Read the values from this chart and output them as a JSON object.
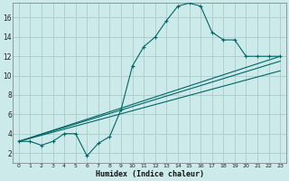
{
  "xlabel": "Humidex (Indice chaleur)",
  "bg_color": "#cceaea",
  "grid_color": "#aacccc",
  "line_color": "#006666",
  "xlim": [
    -0.5,
    23.5
  ],
  "ylim": [
    1.0,
    17.5
  ],
  "xticks": [
    0,
    1,
    2,
    3,
    4,
    5,
    6,
    7,
    8,
    9,
    10,
    11,
    12,
    13,
    14,
    15,
    16,
    17,
    18,
    19,
    20,
    21,
    22,
    23
  ],
  "yticks": [
    2,
    4,
    6,
    8,
    10,
    12,
    14,
    16
  ],
  "curve1_x": [
    0,
    1,
    2,
    3,
    4,
    5,
    6,
    7,
    8,
    9,
    10,
    11,
    12,
    13,
    14,
    15,
    16,
    17,
    18,
    19,
    20,
    21,
    22,
    23
  ],
  "curve1_y": [
    3.2,
    3.2,
    2.8,
    3.2,
    4.0,
    4.0,
    1.7,
    3.0,
    3.7,
    6.5,
    11.0,
    13.0,
    14.0,
    15.7,
    17.2,
    17.5,
    17.2,
    14.5,
    13.7,
    13.7,
    12.0,
    12.0,
    12.0,
    12.0
  ],
  "line1_x": [
    0,
    23
  ],
  "line1_y": [
    3.2,
    12.0
  ],
  "line2_x": [
    0,
    23
  ],
  "line2_y": [
    3.2,
    11.5
  ],
  "line3_x": [
    0,
    23
  ],
  "line3_y": [
    3.2,
    10.5
  ]
}
